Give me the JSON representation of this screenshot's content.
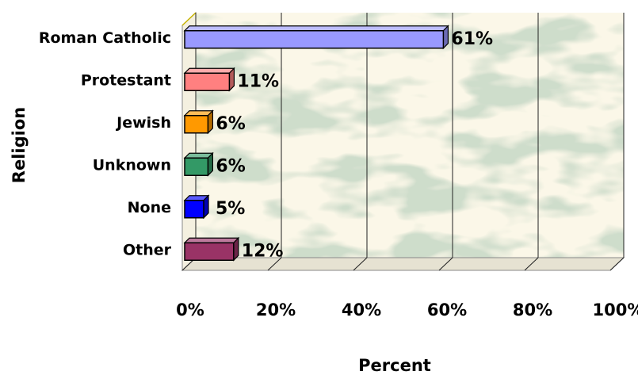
{
  "chart_data": {
    "type": "bar",
    "orientation": "horizontal",
    "style": "3d",
    "categories": [
      "Roman Catholic",
      "Protestant",
      "Jewish",
      "Unknown",
      "None",
      "Other"
    ],
    "values": [
      61,
      11,
      6,
      6,
      5,
      12
    ],
    "value_labels": [
      "61%",
      "11%",
      "6%",
      "6%",
      "5%",
      "12%"
    ],
    "bar_colors": [
      "#9999ff",
      "#ff8080",
      "#ff9900",
      "#339966",
      "#0000ff",
      "#993366"
    ],
    "xlabel": "Percent",
    "ylabel": "Religion",
    "xlim": [
      0,
      100
    ],
    "x_ticks": [
      0,
      20,
      40,
      60,
      80,
      100
    ],
    "x_tick_labels": [
      "0%",
      "20%",
      "40%",
      "60%",
      "80%",
      "100%"
    ],
    "grid": "vertical",
    "legend": "none",
    "plot_background": "#fbf7e8"
  }
}
